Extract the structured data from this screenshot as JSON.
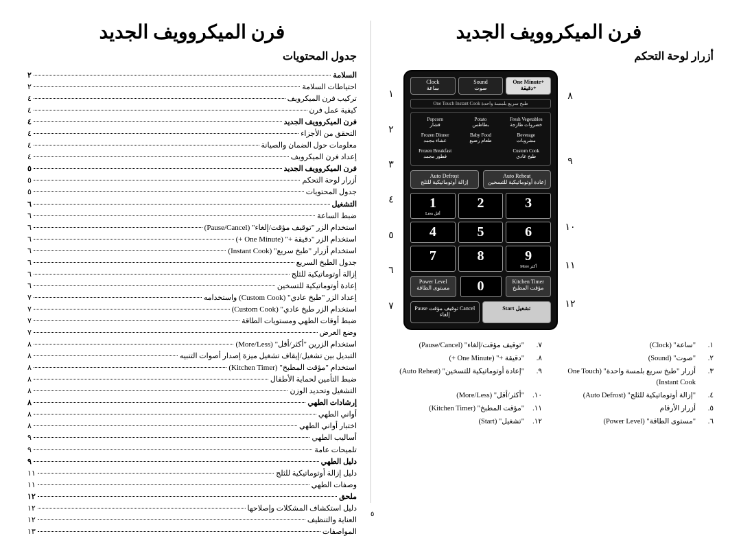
{
  "title_left": "فرن الميكروويف الجديد",
  "title_right": "فرن الميكروويف الجديد",
  "subtitle_left": "جدول المحتويات",
  "subtitle_right": "أزرار لوحة التحكم",
  "page_number": "٥",
  "toc": [
    {
      "t": "السلامة",
      "p": "٢",
      "b": 1
    },
    {
      "t": "احتياطات السلامة",
      "p": "٢"
    },
    {
      "t": "تركيب فرن الميكرويف",
      "p": "٤"
    },
    {
      "t": "كيفية عمل فرن",
      "p": "٤"
    },
    {
      "t": "فرن الميكروويف الجديد",
      "p": "٤",
      "b": 1
    },
    {
      "t": "التحقق من الأجزاء",
      "p": "٤"
    },
    {
      "t": "معلومات حول الضمان والصيانة",
      "p": "٤"
    },
    {
      "t": "إعداد فرن الميكرويف",
      "p": "٤"
    },
    {
      "t": "فرن الميكروويف الجديد",
      "p": "٥",
      "b": 1
    },
    {
      "t": "أزرار لوحة التحكم",
      "p": "٥"
    },
    {
      "t": "جدول المحتويات",
      "p": "٥"
    },
    {
      "t": "التشغيل",
      "p": "٦",
      "b": 1
    },
    {
      "t": "ضبط الساعة",
      "p": "٦"
    },
    {
      "t": "استخدام الزر \"توقيف مؤقت/إلغاء\" (Pause/Cancel)",
      "p": "٦"
    },
    {
      "t": "استخدام الزر \"دقيقة +\" (One Minute +)",
      "p": "٦"
    },
    {
      "t": "استخدام أزرار \"طبخ سريع\" (Instant Cook)",
      "p": "٦"
    },
    {
      "t": "جدول الطبخ السريع",
      "p": "٦"
    },
    {
      "t": "إزالة أوتوماتيكية للثلج",
      "p": "٦"
    },
    {
      "t": "إعادة أوتوماتيكية للتسخين",
      "p": "٦"
    },
    {
      "t": "إعداد الزر \"طبخ عادي\" (Custom Cook) واستخدامه",
      "p": "٧"
    },
    {
      "t": "استخدام الزر طبخ عادي\" (Custom Cook)",
      "p": "٧"
    },
    {
      "t": "ضبط أوقات الطهي ومستويات الطاقة",
      "p": "٧"
    },
    {
      "t": "وضع العرض",
      "p": "٧"
    },
    {
      "t": "استخدام الزرين \"أكثر/أقل\" (More/Less)",
      "p": "٨"
    },
    {
      "t": "التبديل بين تشغيل/إيقاف تشغيل ميزة إصدار أصوات التنبيه",
      "p": "٨"
    },
    {
      "t": "استخدام \"مؤقت المطبخ\" (Kitchen Timer)",
      "p": "٨"
    },
    {
      "t": "ضبط التأمين لحماية الأطفال",
      "p": "٨"
    },
    {
      "t": "التشغيل وتحديد الوزن",
      "p": "٨"
    },
    {
      "t": "إرشادات الطهي",
      "p": "٨",
      "b": 1
    },
    {
      "t": "أواني الطهي",
      "p": "٨"
    },
    {
      "t": "اختبار أواني الطهي",
      "p": "٨"
    },
    {
      "t": "أساليب الطهي",
      "p": "٩"
    },
    {
      "t": "تلميحات عامة",
      "p": "٩"
    },
    {
      "t": "دليل الطهي",
      "p": "٩",
      "b": 1
    },
    {
      "t": "دليل إزالة أوتوماتيكية للثلج",
      "p": "١١"
    },
    {
      "t": "وصفات الطهي",
      "p": "١١"
    },
    {
      "t": "ملحق",
      "p": "١٢",
      "b": 1
    },
    {
      "t": "دليل استكشاف المشكلات وإصلاحها",
      "p": "١٢"
    },
    {
      "t": "العناية والتنظيف",
      "p": "١٢"
    },
    {
      "t": "المواصفات",
      "p": "١٣"
    }
  ],
  "callouts_left": [
    "١",
    "٢",
    "٣",
    "٤",
    "٥",
    "٦",
    "٧"
  ],
  "callouts_right": [
    "٨",
    "",
    "٩",
    "",
    "١٠",
    "١١",
    "١٢"
  ],
  "panel": {
    "top": [
      {
        "en": "Clock",
        "ar": "ساعة"
      },
      {
        "en": "Sound",
        "ar": "صوت"
      },
      {
        "en": "One Minute+",
        "ar": "دقيقة+",
        "inv": 1
      }
    ],
    "strip": "One Touch Instant Cook\nطبخ سريع بلمسة واحدة",
    "foods": [
      [
        {
          "en": "Popcorn",
          "ar": "فشار"
        },
        {
          "en": "Potato",
          "ar": "بطاطس"
        },
        {
          "en": "Fresh Vegetables",
          "ar": "خضروات طازجة"
        }
      ],
      [
        {
          "en": "Frozen Dinner",
          "ar": "عشاء مجمد"
        },
        {
          "en": "Baby Food",
          "ar": "طعام رضيع"
        },
        {
          "en": "Beverage",
          "ar": "مشروبات"
        }
      ],
      [
        {
          "en": "Frozen Breakfast",
          "ar": "فطور مجمد"
        },
        {
          "en": "",
          "ar": ""
        },
        {
          "en": "Custom Cook",
          "ar": "طبخ عادي"
        }
      ]
    ],
    "auto": [
      {
        "en": "Auto Defrost",
        "ar": "إزالة أوتوماتيكية للثلج"
      },
      {
        "en": "Auto Reheat",
        "ar": "إعادة أوتوماتيكية للتسخين"
      }
    ],
    "keys": [
      "1",
      "2",
      "3",
      "4",
      "5",
      "6",
      "7",
      "8",
      "9"
    ],
    "key1sub": "Less أقل",
    "key9sub": "More أكثر",
    "power": {
      "en": "Power Level",
      "ar": "مستوى الطاقة"
    },
    "zero": "0",
    "ktimer": {
      "en": "Kitchen Timer",
      "ar": "مؤقت المطبخ"
    },
    "bottom": [
      {
        "en": "Pause توقيف مؤقت\nCancel إلغاء"
      },
      {
        "en": "Start\nتشغيل",
        "start": 1
      }
    ]
  },
  "legend_right": [
    {
      "n": "١.",
      "t": "\"ساعة\" (Clock)"
    },
    {
      "n": "٢.",
      "t": "\"صوت\" (Sound)"
    },
    {
      "n": "٣.",
      "t": "أزرار \"طبخ سريع بلمسة واحدة\" (One Touch Instant Cook)"
    },
    {
      "n": "٤.",
      "t": "\"إزالة أوتوماتيكية للثلج\" (Auto Defrost)"
    },
    {
      "n": "٥.",
      "t": "أزرار الأرقام"
    },
    {
      "n": "٦.",
      "t": "\"مستوى الطاقة\" (Power Level)"
    }
  ],
  "legend_left": [
    {
      "n": "٧.",
      "t": "\"توقيف مؤقت/إلغاء\" (Pause/Cancel)"
    },
    {
      "n": "٨.",
      "t": "\"دقيقة +\" (One Minute +)"
    },
    {
      "n": "٩.",
      "t": "\"إعادة أوتوماتيكية للتسخين\" (Auto Reheat)"
    },
    {
      "n": "١٠.",
      "t": "\"أكثر/أقل\" (More/Less)"
    },
    {
      "n": "١١.",
      "t": "\"مؤقت المطبخ\" (Kitchen Timer)"
    },
    {
      "n": "١٢.",
      "t": "\"تشغيل\" (Start)"
    }
  ]
}
